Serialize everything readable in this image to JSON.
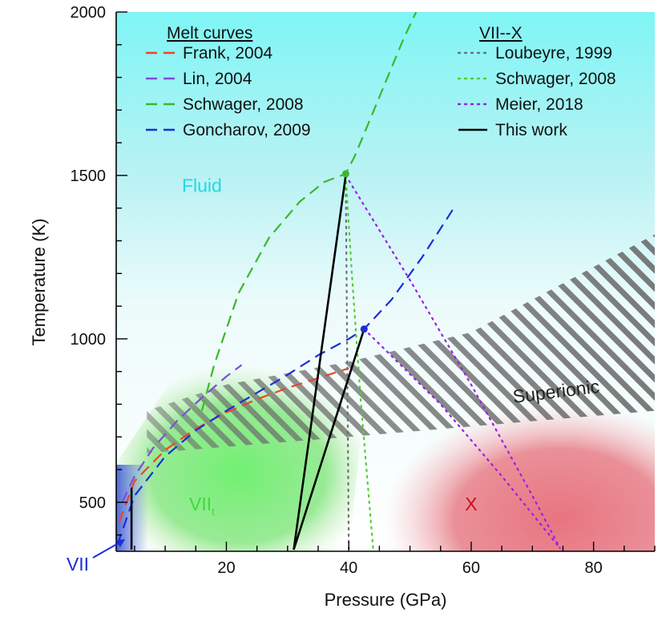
{
  "chart_data": {
    "type": "line",
    "title": "",
    "xlabel": "Pressure (GPa)",
    "ylabel": "Temperature (K)",
    "xlim": [
      2,
      90
    ],
    "ylim": [
      350,
      2000
    ],
    "xticks": [
      20,
      40,
      60,
      80
    ],
    "yticks": [
      500,
      1000,
      1500,
      2000
    ],
    "legend_melt_title": "Melt curves",
    "legend_phase_title": "VII--X",
    "series": [
      {
        "name": "Frank, 2004",
        "group": "melt",
        "style": "dashed",
        "color": "#e8472a",
        "x": [
          2.5,
          5,
          10,
          15,
          20,
          25,
          30,
          35,
          40
        ],
        "y": [
          440,
          565,
          660,
          725,
          775,
          815,
          850,
          880,
          910
        ]
      },
      {
        "name": "Lin, 2004",
        "group": "melt",
        "style": "dashed",
        "color": "#7c4dd9",
        "x": [
          3,
          5,
          8,
          12,
          16,
          20,
          22.5
        ],
        "y": [
          500,
          580,
          665,
          750,
          820,
          885,
          920
        ]
      },
      {
        "name": "Schwager, 2008",
        "group": "melt",
        "style": "dashed",
        "color": "#3bb82a",
        "x": [
          16,
          18,
          22,
          27,
          32,
          36,
          39.5,
          41,
          43,
          45,
          47,
          49,
          51
        ],
        "y": [
          780,
          920,
          1140,
          1310,
          1420,
          1480,
          1505,
          1560,
          1650,
          1740,
          1830,
          1920,
          2000
        ]
      },
      {
        "name": "Goncharov, 2009",
        "group": "melt",
        "style": "dashed",
        "color": "#1a2fd6",
        "x": [
          2.2,
          5,
          10,
          15,
          20,
          25,
          30,
          35,
          40,
          42.5,
          47,
          52,
          57.5
        ],
        "y": [
          370,
          520,
          640,
          720,
          780,
          835,
          890,
          950,
          1000,
          1030,
          1120,
          1250,
          1410
        ]
      },
      {
        "name": "Loubeyre, 1999",
        "group": "phase",
        "style": "dotted",
        "color": "#707070",
        "x": [
          39.5,
          40
        ],
        "y": [
          1500,
          355
        ]
      },
      {
        "name": "Schwager, 2008",
        "group": "phase",
        "style": "dotted",
        "color": "#4fcf2e",
        "x": [
          39.5,
          40.5,
          42,
          44
        ],
        "y": [
          1500,
          1200,
          800,
          355
        ]
      },
      {
        "name": "Meier, 2018",
        "group": "phase",
        "style": "dotted",
        "color": "#9b1ee8",
        "x": [
          39.5,
          50,
          60,
          70,
          74.5
        ],
        "y": [
          1500,
          1180,
          860,
          520,
          360
        ]
      },
      {
        "name": "Meier, 2018 (branch)",
        "group": "phase-extra",
        "style": "dotted",
        "color": "#9b1ee8",
        "x": [
          42.5,
          55,
          65,
          74.5
        ],
        "y": [
          1030,
          800,
          580,
          360
        ]
      },
      {
        "name": "This work",
        "group": "phase",
        "style": "solid",
        "color": "#000000",
        "x": [
          31,
          39.5
        ],
        "y": [
          355,
          1500
        ]
      },
      {
        "name": "This work (branch)",
        "group": "phase-extra",
        "style": "solid",
        "color": "#000000",
        "x": [
          31,
          42.5
        ],
        "y": [
          355,
          1030
        ]
      },
      {
        "name": "VII boundary",
        "group": "phase-extra",
        "style": "solid",
        "color": "#000000",
        "x": [
          4.5,
          4.5
        ],
        "y": [
          355,
          545
        ]
      }
    ],
    "points": [
      {
        "x": 39.5,
        "y": 1505,
        "color": "#3bb82a"
      },
      {
        "x": 42.5,
        "y": 1030,
        "color": "#1a2fd6"
      }
    ],
    "annotations": [
      {
        "text": "Fluid",
        "x": 16,
        "y": 1450,
        "color": "#21d8e8"
      },
      {
        "text": "Superionic",
        "x": 74,
        "y": 820,
        "color": "#222222"
      },
      {
        "text": "VII",
        "sub": "t",
        "x": 16,
        "y": 475,
        "color": "#3cdc3c"
      },
      {
        "text": "X",
        "x": 60,
        "y": 475,
        "color": "#c8101e"
      },
      {
        "text": "VII",
        "x": 0,
        "y": 250,
        "color": "#1a2fd6"
      }
    ]
  }
}
